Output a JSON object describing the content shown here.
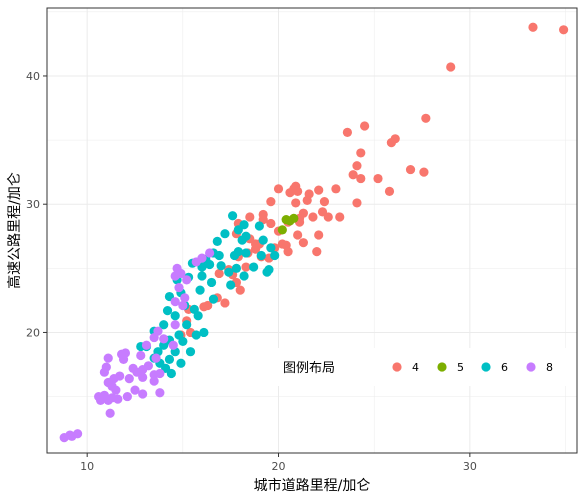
{
  "chart_data": {
    "type": "scatter",
    "xlabel": "城市道路里程/加仑",
    "ylabel": "高速公路里程/加仑",
    "xlim": [
      7.9,
      35.6
    ],
    "ylim": [
      10.6,
      45.3
    ],
    "x_ticks": [
      10,
      20,
      30
    ],
    "y_ticks": [
      20,
      30,
      40
    ],
    "x_tick_labels": [
      "10",
      "20",
      "30"
    ],
    "y_tick_labels": [
      "20",
      "30",
      "40"
    ],
    "grid": true,
    "legend": {
      "title": "图例布局",
      "position": "inside-bottom-right",
      "orientation": "horizontal"
    },
    "series": [
      {
        "name": "4",
        "color": "#F8766D",
        "points": [
          [
            33.3,
            43.8
          ],
          [
            34.9,
            43.6
          ],
          [
            29.0,
            40.7
          ],
          [
            27.7,
            36.7
          ],
          [
            24.5,
            36.1
          ],
          [
            23.6,
            35.6
          ],
          [
            26.1,
            35.1
          ],
          [
            25.9,
            34.8
          ],
          [
            24.1,
            33.0
          ],
          [
            26.9,
            32.7
          ],
          [
            23.9,
            32.3
          ],
          [
            24.3,
            32.0
          ],
          [
            25.2,
            32.0
          ],
          [
            25.8,
            31.0
          ],
          [
            27.6,
            32.5
          ],
          [
            20.9,
            31.4
          ],
          [
            20.8,
            31.2
          ],
          [
            21.0,
            31.0
          ],
          [
            20.0,
            31.2
          ],
          [
            20.6,
            30.9
          ],
          [
            22.1,
            31.1
          ],
          [
            23.0,
            31.2
          ],
          [
            21.6,
            30.8
          ],
          [
            21.5,
            30.3
          ],
          [
            19.6,
            30.2
          ],
          [
            20.9,
            30.1
          ],
          [
            22.4,
            30.2
          ],
          [
            24.1,
            30.1
          ],
          [
            22.3,
            29.4
          ],
          [
            21.3,
            29.3
          ],
          [
            21.1,
            28.9
          ],
          [
            21.8,
            29.0
          ],
          [
            22.6,
            29.0
          ],
          [
            23.2,
            29.0
          ],
          [
            20.5,
            28.6
          ],
          [
            19.6,
            28.5
          ],
          [
            19.2,
            28.8
          ],
          [
            18.5,
            29.0
          ],
          [
            17.9,
            28.5
          ],
          [
            17.8,
            27.7
          ],
          [
            20.0,
            27.9
          ],
          [
            21.0,
            27.6
          ],
          [
            22.1,
            27.6
          ],
          [
            21.3,
            27.0
          ],
          [
            20.4,
            26.8
          ],
          [
            19.8,
            26.6
          ],
          [
            19.0,
            26.9
          ],
          [
            18.8,
            26.5
          ],
          [
            18.4,
            26.2
          ],
          [
            17.9,
            25.9
          ],
          [
            19.5,
            25.8
          ],
          [
            20.2,
            26.9
          ],
          [
            22.0,
            26.3
          ],
          [
            20.5,
            26.3
          ],
          [
            18.3,
            25.1
          ],
          [
            17.4,
            24.9
          ],
          [
            16.9,
            24.6
          ],
          [
            17.6,
            24.5
          ],
          [
            17.8,
            23.9
          ],
          [
            18.0,
            23.3
          ],
          [
            16.8,
            22.7
          ],
          [
            17.2,
            22.3
          ],
          [
            16.1,
            22.0
          ],
          [
            16.3,
            22.1
          ],
          [
            15.3,
            21.8
          ],
          [
            15.2,
            20.9
          ],
          [
            14.9,
            19.8
          ],
          [
            15.4,
            20.0
          ],
          [
            21.1,
            28.6
          ],
          [
            19.2,
            29.2
          ],
          [
            24.3,
            34.0
          ],
          [
            19.1,
            25.9
          ],
          [
            18.8,
            26.9
          ],
          [
            18.5,
            27.3
          ]
        ]
      },
      {
        "name": "5",
        "color": "#7CAE00",
        "points": [
          [
            20.4,
            28.8
          ],
          [
            20.8,
            28.9
          ],
          [
            20.2,
            28.0
          ],
          [
            20.6,
            28.7
          ]
        ]
      },
      {
        "name": "6",
        "color": "#00BFC4",
        "points": [
          [
            17.6,
            29.1
          ],
          [
            18.2,
            28.4
          ],
          [
            17.9,
            28.0
          ],
          [
            19.0,
            28.3
          ],
          [
            17.2,
            27.7
          ],
          [
            16.8,
            27.1
          ],
          [
            18.3,
            27.5
          ],
          [
            19.2,
            27.2
          ],
          [
            19.6,
            26.6
          ],
          [
            17.9,
            26.3
          ],
          [
            16.6,
            26.2
          ],
          [
            16.9,
            26.0
          ],
          [
            17.7,
            26.0
          ],
          [
            18.3,
            26.2
          ],
          [
            19.1,
            26.0
          ],
          [
            16.2,
            25.7
          ],
          [
            15.5,
            25.4
          ],
          [
            16.4,
            25.3
          ],
          [
            16.0,
            25.1
          ],
          [
            17.0,
            25.2
          ],
          [
            17.8,
            25.0
          ],
          [
            18.7,
            25.1
          ],
          [
            19.4,
            24.7
          ],
          [
            17.4,
            24.7
          ],
          [
            16.0,
            24.4
          ],
          [
            15.3,
            24.3
          ],
          [
            14.7,
            24.1
          ],
          [
            16.5,
            23.9
          ],
          [
            17.5,
            23.7
          ],
          [
            18.2,
            24.4
          ],
          [
            15.9,
            23.3
          ],
          [
            14.9,
            23.1
          ],
          [
            14.3,
            22.8
          ],
          [
            16.6,
            22.6
          ],
          [
            15.1,
            22.1
          ],
          [
            14.2,
            21.7
          ],
          [
            15.6,
            21.8
          ],
          [
            14.6,
            21.3
          ],
          [
            15.8,
            21.3
          ],
          [
            14.0,
            20.6
          ],
          [
            15.2,
            20.6
          ],
          [
            16.1,
            20.0
          ],
          [
            14.8,
            19.8
          ],
          [
            13.5,
            20.1
          ],
          [
            14.3,
            19.4
          ],
          [
            15.0,
            19.3
          ],
          [
            14.0,
            19.0
          ],
          [
            13.1,
            18.9
          ],
          [
            12.8,
            18.9
          ],
          [
            13.7,
            18.5
          ],
          [
            14.6,
            18.5
          ],
          [
            15.4,
            18.5
          ],
          [
            13.5,
            18.0
          ],
          [
            14.3,
            17.9
          ],
          [
            14.9,
            17.6
          ],
          [
            14.1,
            17.2
          ],
          [
            14.4,
            16.8
          ],
          [
            13.8,
            17.6
          ],
          [
            15.7,
            19.8
          ],
          [
            19.5,
            24.9
          ],
          [
            19.8,
            26.0
          ],
          [
            18.1,
            27.2
          ]
        ]
      },
      {
        "name": "8",
        "color": "#C77CFF",
        "points": [
          [
            16.4,
            26.2
          ],
          [
            16.0,
            25.8
          ],
          [
            15.7,
            25.5
          ],
          [
            14.7,
            25.0
          ],
          [
            14.9,
            24.6
          ],
          [
            15.2,
            24.1
          ],
          [
            14.6,
            24.4
          ],
          [
            14.8,
            23.5
          ],
          [
            15.1,
            22.7
          ],
          [
            14.6,
            22.4
          ],
          [
            15.0,
            22.1
          ],
          [
            14.6,
            20.6
          ],
          [
            13.7,
            20.1
          ],
          [
            13.5,
            19.6
          ],
          [
            13.1,
            19.0
          ],
          [
            14.0,
            19.5
          ],
          [
            14.5,
            19.0
          ],
          [
            12.8,
            18.2
          ],
          [
            13.6,
            18.0
          ],
          [
            13.2,
            17.4
          ],
          [
            12.9,
            17.1
          ],
          [
            12.6,
            16.9
          ],
          [
            12.4,
            17.2
          ],
          [
            13.8,
            16.8
          ],
          [
            12.9,
            16.5
          ],
          [
            13.5,
            16.2
          ],
          [
            12.2,
            16.4
          ],
          [
            11.9,
            17.9
          ],
          [
            11.8,
            18.3
          ],
          [
            12.0,
            18.4
          ],
          [
            11.0,
            17.3
          ],
          [
            10.9,
            16.9
          ],
          [
            11.4,
            16.4
          ],
          [
            11.7,
            16.6
          ],
          [
            11.1,
            16.1
          ],
          [
            11.3,
            15.8
          ],
          [
            11.5,
            15.5
          ],
          [
            10.9,
            15.1
          ],
          [
            10.6,
            15.0
          ],
          [
            10.7,
            14.7
          ],
          [
            11.1,
            14.7
          ],
          [
            11.3,
            14.9
          ],
          [
            11.6,
            14.8
          ],
          [
            12.5,
            15.5
          ],
          [
            12.1,
            15.0
          ],
          [
            12.9,
            15.2
          ],
          [
            11.2,
            13.7
          ],
          [
            13.8,
            15.3
          ],
          [
            13.5,
            16.7
          ],
          [
            8.8,
            11.8
          ],
          [
            9.2,
            11.9
          ],
          [
            9.5,
            12.1
          ],
          [
            9.1,
            12.0
          ],
          [
            11.1,
            18.0
          ]
        ]
      }
    ]
  }
}
